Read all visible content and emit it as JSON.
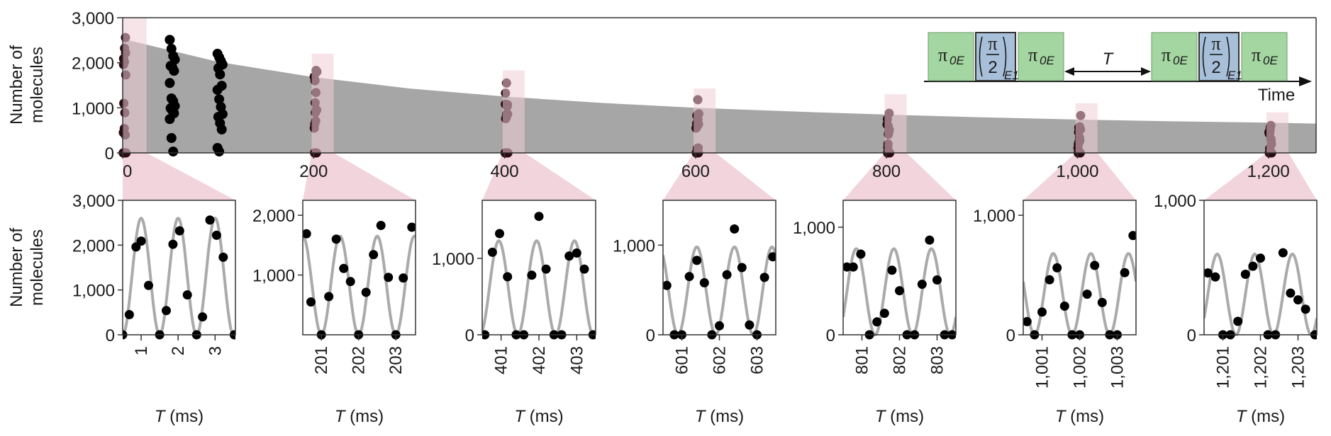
{
  "colors": {
    "decay_fill": "#a6a6a6",
    "highlight": "#f0cdd7",
    "dot": "#000000",
    "dot_highlighted": "#2b0a12",
    "fit_line": "#aaaaaa",
    "pulse_green": "#a3d6a0",
    "pulse_blue": "#a7bfd8",
    "axis": "#333333"
  },
  "chart_data": [
    {
      "type": "scatter",
      "id": "overview",
      "title": "",
      "ylabel_line1": "Number of",
      "ylabel_line2": "molecules",
      "xlabel": "",
      "xlim": [
        0,
        1250
      ],
      "ylim": [
        0,
        3000
      ],
      "yticks": [
        0,
        1000,
        2000,
        3000
      ],
      "ytick_labels": [
        "0",
        "1,000",
        "2,000",
        "3,000"
      ],
      "xticks": [
        0,
        200,
        400,
        600,
        800,
        1000,
        1200
      ],
      "xtick_labels": [
        "0",
        "200",
        "400",
        "600",
        "800",
        "1,000",
        "1,200"
      ],
      "envelope": {
        "description_type": "area",
        "x": [
          0,
          100,
          200,
          300,
          400,
          500,
          600,
          700,
          800,
          900,
          1000,
          1100,
          1200,
          1250
        ],
        "y": [
          2530,
          2020,
          1680,
          1430,
          1250,
          1110,
          1000,
          920,
          850,
          790,
          740,
          700,
          670,
          650
        ]
      },
      "columns": [
        {
          "x": 52,
          "y": [
            2510,
            2310,
            2150,
            2070,
            1930,
            1900,
            1820,
            1550,
            1210,
            1150,
            1040,
            990,
            940,
            880,
            750,
            330,
            30
          ]
        },
        {
          "x": 102,
          "y": [
            2200,
            2120,
            2040,
            1960,
            1880,
            1740,
            1490,
            1400,
            1190,
            1020,
            860,
            800,
            660,
            520,
            110,
            30
          ]
        }
      ],
      "highlights": [
        {
          "x_start": 0,
          "x_end": 25,
          "y_top": 3000
        },
        {
          "x_start": 198,
          "x_end": 221,
          "y_top": 2200
        },
        {
          "x_start": 398,
          "x_end": 421,
          "y_top": 1830
        },
        {
          "x_start": 598,
          "x_end": 621,
          "y_top": 1430
        },
        {
          "x_start": 798,
          "x_end": 821,
          "y_top": 1300
        },
        {
          "x_start": 998,
          "x_end": 1021,
          "y_top": 1100
        },
        {
          "x_start": 1198,
          "x_end": 1221,
          "y_top": 900
        }
      ],
      "sequence": {
        "pulse_main": "π",
        "pulse_sub": "0E",
        "half_num": "π",
        "half_den": "2",
        "half_sub": "E1",
        "delay_label": "T",
        "axis_label": "Time"
      }
    },
    {
      "type": "scatter",
      "id": "inset-0",
      "ylabel_line1": "Number of",
      "ylabel_line2": "molecules",
      "xlabel_italic": "T",
      "xlabel_unit": " (ms)",
      "xlim": [
        0.5,
        3.55
      ],
      "ylim": [
        0,
        3000
      ],
      "yticks": [
        0,
        1000,
        2000,
        3000
      ],
      "ytick_labels": [
        "0",
        "1,000",
        "2,000",
        "3,000"
      ],
      "xticks": [
        1,
        2,
        3
      ],
      "xtick_labels": [
        "1",
        "2",
        "3"
      ],
      "fit": {
        "amplitude": 2600,
        "period": 1.0,
        "trough": 0.5
      },
      "x": [
        0.5,
        0.68,
        0.86,
        1.0,
        1.2,
        1.5,
        1.68,
        1.86,
        2.04,
        2.25,
        2.5,
        2.66,
        2.86,
        3.04,
        3.22,
        3.52
      ],
      "y": [
        0,
        450,
        1960,
        2090,
        1100,
        0,
        540,
        2020,
        2320,
        890,
        0,
        400,
        2560,
        2220,
        1730,
        0
      ]
    },
    {
      "type": "scatter",
      "id": "inset-200",
      "xlabel_italic": "T",
      "xlabel_unit": " (ms)",
      "xlim": [
        200.5,
        203.53
      ],
      "ylim": [
        0,
        2250
      ],
      "yticks": [
        1000,
        2000
      ],
      "ytick_labels": [
        "1,000",
        "2,000"
      ],
      "xticks": [
        201,
        202,
        203
      ],
      "xtick_labels": [
        "201",
        "202",
        "203"
      ],
      "fit": {
        "amplitude": 1650,
        "period": 1.0,
        "trough": 201.0
      },
      "x": [
        200.6,
        200.72,
        201.0,
        201.2,
        201.4,
        201.6,
        201.78,
        202.0,
        202.2,
        202.4,
        202.6,
        202.8,
        203.0,
        203.2,
        203.43
      ],
      "y": [
        1690,
        550,
        0,
        640,
        1600,
        1110,
        890,
        0,
        710,
        1340,
        1830,
        960,
        0,
        950,
        1800
      ]
    },
    {
      "type": "scatter",
      "id": "inset-400",
      "xlabel_italic": "T",
      "xlabel_unit": " (ms)",
      "xlim": [
        400.5,
        403.5
      ],
      "ylim": [
        0,
        1760
      ],
      "yticks": [
        0,
        1000
      ],
      "ytick_labels": [
        "0",
        "1,000"
      ],
      "xticks": [
        401,
        402,
        403
      ],
      "xtick_labels": [
        "401",
        "402",
        "403"
      ],
      "fit": {
        "amplitude": 1230,
        "period": 1.0,
        "trough": 400.44
      },
      "x": [
        400.57,
        400.77,
        400.96,
        401.17,
        401.4,
        401.6,
        401.81,
        402.0,
        402.19,
        402.4,
        402.6,
        402.8,
        403.0,
        403.2,
        403.43
      ],
      "y": [
        0,
        1080,
        1325,
        760,
        0,
        0,
        780,
        1550,
        860,
        0,
        0,
        1030,
        1070,
        860,
        0
      ]
    },
    {
      "type": "scatter",
      "id": "inset-600",
      "xlabel_italic": "T",
      "xlabel_unit": " (ms)",
      "xlim": [
        600.5,
        603.5
      ],
      "ylim": [
        0,
        1500
      ],
      "yticks": [
        0,
        1000
      ],
      "ytick_labels": [
        "0",
        "1,000"
      ],
      "xticks": [
        601,
        602,
        603
      ],
      "xtick_labels": [
        "601",
        "602",
        "603"
      ],
      "fit": {
        "amplitude": 980,
        "period": 1.0,
        "trough": 600.9
      },
      "x": [
        600.6,
        600.8,
        601.0,
        601.2,
        601.4,
        601.6,
        601.8,
        602.0,
        602.2,
        602.4,
        602.6,
        602.8,
        603.0,
        603.2,
        603.42
      ],
      "y": [
        550,
        0,
        0,
        650,
        830,
        580,
        0,
        100,
        670,
        1180,
        750,
        110,
        0,
        640,
        870
      ]
    },
    {
      "type": "scatter",
      "id": "inset-800",
      "xlabel_italic": "T",
      "xlabel_unit": " (ms)",
      "xlim": [
        800.5,
        803.5
      ],
      "ylim": [
        0,
        1250
      ],
      "yticks": [
        0,
        1000
      ],
      "ytick_labels": [
        "0",
        "1,000"
      ],
      "xticks": [
        801,
        802,
        803
      ],
      "xtick_labels": [
        "801",
        "802",
        "803"
      ],
      "fit": {
        "amplitude": 800,
        "period": 1.0,
        "trough": 801.35
      },
      "x": [
        800.6,
        800.77,
        800.97,
        801.2,
        801.4,
        801.6,
        801.8,
        802.0,
        802.2,
        802.4,
        802.6,
        802.8,
        803.0,
        803.2,
        803.4
      ],
      "y": [
        630,
        630,
        750,
        0,
        120,
        200,
        600,
        410,
        0,
        0,
        470,
        880,
        510,
        0,
        0
      ]
    },
    {
      "type": "scatter",
      "id": "inset-1000",
      "xlabel_italic": "T",
      "xlabel_unit": " (ms)",
      "xlim": [
        1000.5,
        1003.5
      ],
      "ylim": [
        0,
        1125
      ],
      "yticks": [
        0,
        1000
      ],
      "ytick_labels": [
        "0",
        "1,000"
      ],
      "xticks": [
        1001,
        1002,
        1003
      ],
      "xtick_labels": [
        "1,001",
        "1,002",
        "1,003"
      ],
      "fit": {
        "amplitude": 680,
        "period": 1.0,
        "trough": 1000.8
      },
      "x": [
        1000.6,
        1000.8,
        1001.0,
        1001.2,
        1001.4,
        1001.6,
        1001.8,
        1002.0,
        1002.2,
        1002.4,
        1002.6,
        1002.8,
        1003.0,
        1003.2,
        1003.42
      ],
      "y": [
        110,
        0,
        190,
        460,
        560,
        240,
        0,
        0,
        340,
        580,
        270,
        0,
        0,
        520,
        830
      ]
    },
    {
      "type": "scatter",
      "id": "inset-1200",
      "xlabel_italic": "T",
      "xlabel_unit": " (ms)",
      "xlim": [
        1200.5,
        1203.5
      ],
      "ylim": [
        0,
        1000
      ],
      "yticks": [
        0,
        1000
      ],
      "ytick_labels": [
        "0",
        "1,000"
      ],
      "xticks": [
        1201,
        1202,
        1203
      ],
      "xtick_labels": [
        "1,201",
        "1,202",
        "1,203"
      ],
      "fit": {
        "amplitude": 600,
        "period": 1.0,
        "trough": 1201.35
      },
      "x": [
        1200.6,
        1200.8,
        1201.0,
        1201.2,
        1201.4,
        1201.6,
        1201.8,
        1202.0,
        1202.2,
        1202.4,
        1202.6,
        1202.8,
        1203.0,
        1203.2,
        1203.45
      ],
      "y": [
        460,
        430,
        0,
        0,
        100,
        450,
        510,
        570,
        0,
        0,
        610,
        310,
        260,
        190,
        0
      ]
    }
  ]
}
